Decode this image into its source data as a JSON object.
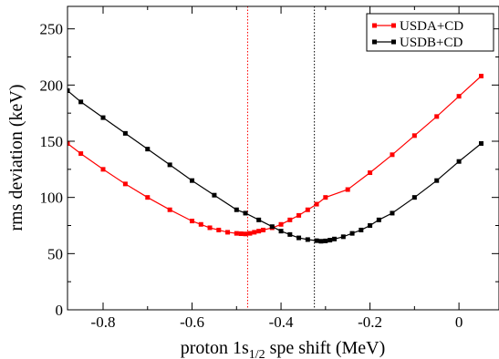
{
  "chart_data": {
    "type": "line",
    "title": "",
    "xlabel_main": "proton 1s",
    "xlabel_sub": "1/2",
    "xlabel_rest": " spe shift (MeV)",
    "ylabel": "rms deviation (keV)",
    "xlim": [
      -0.88,
      0.09
    ],
    "ylim": [
      0,
      270
    ],
    "x_ticks": [
      -0.8,
      -0.6,
      -0.4,
      -0.2,
      0
    ],
    "x_tick_labels": [
      "-0.8",
      "-0.6",
      "-0.4",
      "-0.2",
      "0"
    ],
    "y_ticks": [
      0,
      50,
      100,
      150,
      200,
      250
    ],
    "y_tick_labels": [
      "0",
      "50",
      "100",
      "150",
      "200",
      "250"
    ],
    "legend_position": "top-right",
    "series": [
      {
        "name": "USDA+CD",
        "color": "#ff0000",
        "x": [
          -0.88,
          -0.85,
          -0.8,
          -0.75,
          -0.7,
          -0.65,
          -0.6,
          -0.58,
          -0.56,
          -0.54,
          -0.52,
          -0.5,
          -0.49,
          -0.48,
          -0.47,
          -0.46,
          -0.45,
          -0.44,
          -0.42,
          -0.4,
          -0.38,
          -0.36,
          -0.34,
          -0.32,
          -0.3,
          -0.25,
          -0.2,
          -0.15,
          -0.1,
          -0.05,
          0,
          0.05
        ],
        "y": [
          148,
          139,
          125,
          112,
          100,
          89,
          79,
          76,
          73,
          71,
          69,
          68,
          67.7,
          67.5,
          68,
          69,
          70,
          71,
          73,
          76,
          80,
          84,
          89,
          94,
          100,
          107,
          122,
          138,
          155,
          172,
          190,
          208
        ]
      },
      {
        "name": "USDB+CD",
        "color": "#000000",
        "x": [
          -0.88,
          -0.85,
          -0.8,
          -0.75,
          -0.7,
          -0.65,
          -0.6,
          -0.55,
          -0.5,
          -0.48,
          -0.45,
          -0.42,
          -0.4,
          -0.38,
          -0.36,
          -0.34,
          -0.32,
          -0.31,
          -0.3,
          -0.29,
          -0.28,
          -0.26,
          -0.24,
          -0.22,
          -0.2,
          -0.18,
          -0.15,
          -0.1,
          -0.05,
          0,
          0.05
        ],
        "y": [
          195,
          185,
          171,
          157,
          143,
          129,
          115,
          102,
          89,
          86,
          80,
          74,
          70,
          67,
          64,
          62.5,
          61.5,
          61,
          61.3,
          62,
          63,
          65,
          68,
          71,
          75,
          80,
          86,
          100,
          115,
          132,
          148
        ]
      }
    ],
    "vertical_lines": [
      {
        "x": -0.475,
        "color": "#ff0000"
      },
      {
        "x": -0.325,
        "color": "#000000"
      }
    ]
  }
}
